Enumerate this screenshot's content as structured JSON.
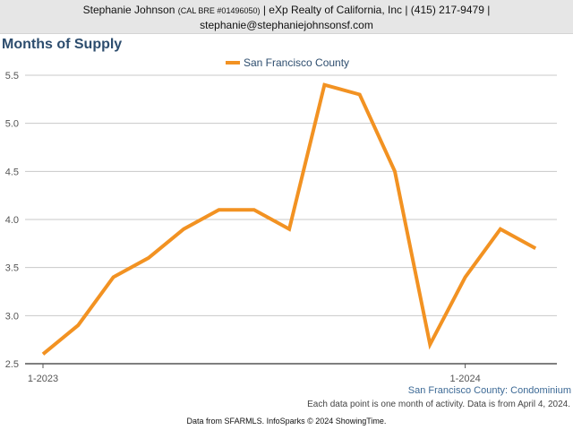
{
  "header": {
    "agent_name": "Stephanie Johnson",
    "license": "(CAL BRE #01496050)",
    "company_phone": "| eXp Realty of California, Inc | (415) 217-9479 |",
    "email": "stephanie@stephaniejohnsonsf.com"
  },
  "footer": {
    "subtitle": "San Francisco County: Condominium",
    "note": "Each data point is one month of activity. Data is from April 4, 2024.",
    "source": "Data from SFARMLS. InfoSparks © 2024 ShowingTime."
  },
  "colors": {
    "series": "#f29222",
    "title": "#2d4d6e",
    "subtitle": "#3d6a96",
    "grid": "#c8c8c8"
  },
  "chart_data": {
    "type": "line",
    "title": "Months of Supply",
    "x": [
      "2023-01",
      "2023-02",
      "2023-03",
      "2023-04",
      "2023-05",
      "2023-06",
      "2023-07",
      "2023-08",
      "2023-09",
      "2023-10",
      "2023-11",
      "2023-12",
      "2024-01",
      "2024-02",
      "2024-03"
    ],
    "x_tick_labels": [
      {
        "x": "2023-01",
        "label": "1-2023"
      },
      {
        "x": "2024-01",
        "label": "1-2024"
      }
    ],
    "series": [
      {
        "name": "San Francisco County",
        "values": [
          2.6,
          2.9,
          3.4,
          3.6,
          3.9,
          4.1,
          4.1,
          3.9,
          5.4,
          5.3,
          4.5,
          2.7,
          3.4,
          3.9,
          3.7
        ]
      }
    ],
    "ylim": [
      2.5,
      5.5
    ],
    "y_ticks": [
      "2.5",
      "3.0",
      "3.5",
      "4.0",
      "4.5",
      "5.0",
      "5.5"
    ],
    "xlabel": "",
    "ylabel": "",
    "grid": true,
    "legend": "top-center"
  }
}
